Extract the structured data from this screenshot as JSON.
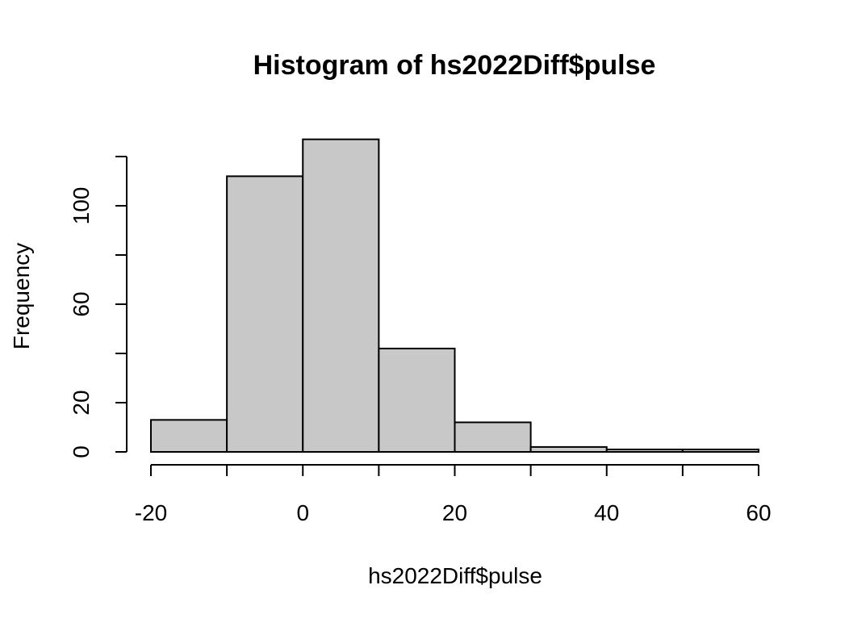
{
  "chart_data": {
    "type": "bar",
    "title": "Histogram of hs2022Diff$pulse",
    "xlabel": "hs2022Diff$pulse",
    "ylabel": "Frequency",
    "bins": [
      {
        "from": -20,
        "to": -10,
        "count": 13
      },
      {
        "from": -10,
        "to": 0,
        "count": 112
      },
      {
        "from": 0,
        "to": 10,
        "count": 127
      },
      {
        "from": 10,
        "to": 20,
        "count": 42
      },
      {
        "from": 20,
        "to": 30,
        "count": 12
      },
      {
        "from": 30,
        "to": 40,
        "count": 2
      },
      {
        "from": 40,
        "to": 50,
        "count": 1
      },
      {
        "from": 50,
        "to": 60,
        "count": 1
      }
    ],
    "xlim": [
      -20,
      60
    ],
    "ylim": [
      0,
      120
    ],
    "x_ticks": [
      -20,
      0,
      20,
      40,
      60
    ],
    "x_tick_labels": [
      "-20",
      "0",
      "20",
      "40",
      "60"
    ],
    "x_minor_ticks": [
      -10,
      10,
      30,
      50
    ],
    "y_ticks": [
      0,
      20,
      40,
      60,
      80,
      100,
      120
    ],
    "y_tick_labels": [
      "0",
      "20",
      "",
      "60",
      "",
      "100",
      ""
    ],
    "grid": false,
    "bar_fill": "#c8c8c8",
    "bar_stroke": "#000000"
  }
}
